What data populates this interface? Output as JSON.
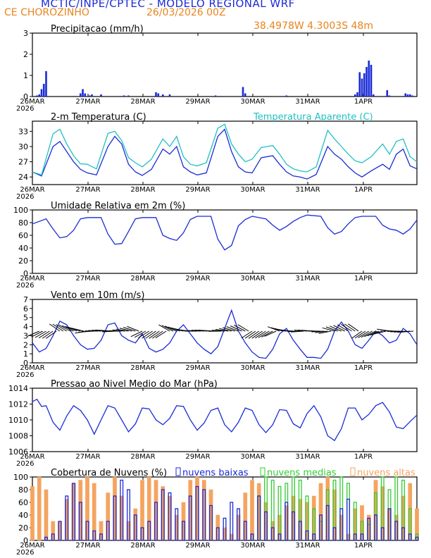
{
  "header": {
    "title": "MCTIC/INPE/CPTEC - MODELO REGIONAL WRF",
    "location": "CE CHOROZINHO",
    "datetime": "26/03/2026 00Z",
    "coordinates": "38.4978W 4.3003S 48m"
  },
  "colors": {
    "blue": "#1a2bd6",
    "orange": "#f4a460",
    "green": "#33cc33",
    "cyan": "#20c0c0",
    "header_orange": "#e8841c"
  },
  "x_axis": {
    "ticks": [
      "26MAR",
      "27MAR",
      "28MAR",
      "29MAR",
      "30MAR",
      "31MAR",
      "1APR"
    ],
    "year": "2026",
    "hours_total": 168
  },
  "chart_data": [
    {
      "type": "bar",
      "title": "Precipitacao (mm/h)",
      "ylim": [
        0,
        3
      ],
      "yticks": [
        "0",
        "1",
        "2",
        "3"
      ],
      "series": [
        {
          "name": "Precipitacao",
          "x_hours": [
            2,
            3,
            4,
            5,
            6,
            21,
            22,
            23,
            25,
            26,
            30,
            40,
            42,
            54,
            55,
            57,
            60,
            80,
            92,
            93,
            111,
            141,
            142,
            143,
            144,
            145,
            146,
            147,
            148,
            149,
            155,
            156,
            163,
            164,
            165,
            166
          ],
          "values": [
            0.05,
            0.1,
            0.35,
            0.6,
            1.2,
            0.15,
            0.35,
            0.15,
            0.05,
            0.1,
            0.1,
            0.05,
            0.05,
            0.2,
            0.15,
            0.1,
            0.1,
            0.05,
            0.45,
            0.15,
            0.05,
            0.1,
            0.2,
            1.15,
            0.85,
            1.1,
            1.4,
            1.7,
            1.5,
            0.1,
            0.3,
            0.05,
            0.15,
            0.1,
            0.1,
            0.05
          ]
        }
      ]
    },
    {
      "type": "line",
      "title": "2-m Temperatura (C)",
      "legend": "Temperatura Aparente (C)",
      "ylim": [
        22.5,
        35
      ],
      "yticks": [
        "24",
        "27",
        "30",
        "33"
      ],
      "series": [
        {
          "name": "2-m Temperatura",
          "x_hours": [
            0,
            4,
            9,
            12,
            15,
            18,
            21,
            24,
            28,
            33,
            36,
            39,
            42,
            45,
            48,
            52,
            57,
            60,
            63,
            66,
            69,
            72,
            76,
            81,
            84,
            87,
            90,
            93,
            96,
            100,
            105,
            108,
            111,
            114,
            117,
            120,
            124,
            129,
            132,
            135,
            138,
            141,
            144,
            148,
            153,
            156,
            159,
            162,
            165,
            168
          ],
          "values": [
            25,
            24.2,
            30,
            31,
            29,
            27,
            25.5,
            24.8,
            24.4,
            30,
            32,
            30.5,
            26.5,
            25,
            24.3,
            25.5,
            29.5,
            28.5,
            30,
            26,
            25,
            24.4,
            24.8,
            32,
            33.4,
            29,
            26,
            25,
            24.8,
            27.8,
            28.2,
            26.5,
            25,
            24.2,
            24,
            23.6,
            24.5,
            30,
            28.5,
            27.5,
            26,
            24.8,
            24,
            25.2,
            26.5,
            25.5,
            28.5,
            29.5,
            26.2,
            25.6
          ]
        },
        {
          "name": "Temperatura Aparente (C)",
          "x_hours": [
            0,
            4,
            9,
            12,
            15,
            18,
            21,
            24,
            28,
            33,
            36,
            39,
            42,
            45,
            48,
            52,
            57,
            60,
            63,
            66,
            69,
            72,
            76,
            81,
            84,
            87,
            90,
            93,
            96,
            100,
            105,
            108,
            111,
            114,
            117,
            120,
            124,
            129,
            132,
            135,
            138,
            141,
            144,
            148,
            153,
            156,
            159,
            162,
            165,
            168
          ],
          "values": [
            25,
            24.4,
            32.5,
            33.4,
            30.5,
            28.2,
            26.6,
            26.5,
            25.6,
            32.6,
            33,
            31.2,
            27.8,
            26.8,
            26,
            27.5,
            31.5,
            30,
            32,
            28,
            26.5,
            26.2,
            26.8,
            33.6,
            34.4,
            30.5,
            28.5,
            27,
            27.5,
            29.8,
            30.2,
            28.5,
            26.5,
            25.6,
            25.2,
            25,
            26,
            33.2,
            31.5,
            30,
            28.5,
            27.2,
            26.8,
            28,
            30.5,
            28.5,
            31,
            31.5,
            28,
            27
          ]
        }
      ]
    },
    {
      "type": "line",
      "title": "Umidade Relativa em 2m (%)",
      "ylim": [
        0,
        100
      ],
      "yticks": [
        "0",
        "20",
        "40",
        "60",
        "80",
        "100"
      ],
      "series": [
        {
          "name": "Umidade Relativa",
          "x_hours": [
            0,
            6,
            9,
            12,
            15,
            18,
            21,
            24,
            30,
            33,
            36,
            39,
            42,
            45,
            48,
            54,
            57,
            60,
            63,
            66,
            69,
            72,
            78,
            81,
            84,
            87,
            90,
            93,
            96,
            102,
            105,
            108,
            111,
            114,
            117,
            120,
            126,
            129,
            132,
            135,
            138,
            141,
            144,
            150,
            153,
            156,
            159,
            162,
            165,
            168
          ],
          "values": [
            78,
            86,
            70,
            56,
            58,
            68,
            86,
            88,
            88,
            62,
            46,
            47,
            66,
            86,
            88,
            88,
            60,
            55,
            52,
            64,
            85,
            90,
            90,
            54,
            37,
            44,
            75,
            85,
            90,
            86,
            76,
            68,
            74,
            82,
            88,
            92,
            90,
            72,
            62,
            66,
            78,
            88,
            90,
            90,
            76,
            70,
            68,
            62,
            70,
            84
          ]
        }
      ]
    },
    {
      "type": "line",
      "title": "Vento em 10m (m/s)",
      "ylim": [
        0,
        7
      ],
      "yticks": [
        "0",
        "1",
        "2",
        "3",
        "4",
        "5",
        "6",
        "7"
      ],
      "series": [
        {
          "name": "Vento",
          "x_hours": [
            0,
            3,
            6,
            9,
            12,
            15,
            18,
            21,
            24,
            27,
            30,
            33,
            36,
            39,
            42,
            45,
            48,
            51,
            54,
            57,
            60,
            63,
            66,
            69,
            72,
            75,
            78,
            81,
            84,
            87,
            90,
            93,
            96,
            99,
            102,
            105,
            108,
            111,
            114,
            117,
            120,
            123,
            126,
            129,
            132,
            135,
            138,
            141,
            144,
            147,
            150,
            153,
            156,
            159,
            162,
            165,
            168
          ],
          "values": [
            2.2,
            1.2,
            1.6,
            3,
            4.6,
            4.2,
            3,
            2,
            1.5,
            1.6,
            2.5,
            4.2,
            4.4,
            3,
            2.5,
            2.2,
            3.2,
            1.6,
            1.2,
            1.5,
            2.2,
            3.5,
            4.2,
            3.2,
            2.2,
            1.5,
            1,
            1.8,
            3.8,
            5.8,
            3.5,
            2.2,
            1.2,
            0.6,
            0.5,
            1.5,
            3.2,
            3.8,
            2.5,
            1.5,
            0.6,
            0.6,
            0.5,
            1.5,
            3.5,
            4.5,
            3.5,
            2,
            1.6,
            2.5,
            3.5,
            3,
            2.2,
            2.5,
            3.8,
            3.2,
            2
          ]
        }
      ]
    },
    {
      "type": "line",
      "title": "Pressao ao Nivel Medio do Mar (hPa)",
      "ylim": [
        1006,
        1014
      ],
      "yticks": [
        "1006",
        "1008",
        "1010",
        "1012",
        "1014"
      ],
      "series": [
        {
          "name": "Pressao",
          "x_hours": [
            0,
            2,
            4,
            6,
            9,
            12,
            15,
            18,
            21,
            24,
            27,
            30,
            33,
            36,
            39,
            42,
            45,
            48,
            51,
            54,
            57,
            60,
            63,
            66,
            69,
            72,
            75,
            78,
            81,
            84,
            87,
            90,
            93,
            96,
            99,
            102,
            105,
            108,
            111,
            114,
            117,
            120,
            123,
            126,
            129,
            132,
            135,
            138,
            141,
            144,
            147,
            150,
            153,
            156,
            159,
            162,
            165,
            168
          ],
          "values": [
            1012.3,
            1012.6,
            1011.7,
            1011.8,
            1009.7,
            1008.7,
            1010.5,
            1011.8,
            1011.2,
            1010,
            1008.2,
            1010,
            1011.8,
            1011.5,
            1010,
            1008.5,
            1009.5,
            1011.5,
            1011.4,
            1010,
            1009.4,
            1010.2,
            1011.8,
            1011.7,
            1010,
            1008.7,
            1009.6,
            1011.2,
            1011.5,
            1009.4,
            1008.5,
            1009.7,
            1011.5,
            1011.2,
            1009.4,
            1008.4,
            1009.4,
            1011.3,
            1011.2,
            1009.5,
            1009,
            1010.8,
            1011.8,
            1010.4,
            1008,
            1007.4,
            1008.9,
            1011.5,
            1011.5,
            1010,
            1010.7,
            1011.8,
            1012.2,
            1011,
            1009.1,
            1008.9,
            1009.8,
            1010.6
          ]
        }
      ]
    },
    {
      "type": "bar",
      "title": "Cobertura de Nuvens (%)",
      "ylim": [
        0,
        100
      ],
      "yticks": [
        "0",
        "20",
        "40",
        "60",
        "80",
        "100"
      ],
      "legend": [
        "nuvens baixas",
        "nuvens medias",
        "nuvens altas"
      ],
      "series": [
        {
          "name": "nuvens baixas",
          "x_hours": [
            6,
            9,
            12,
            15,
            18,
            21,
            24,
            27,
            30,
            33,
            36,
            39,
            42,
            45,
            48,
            51,
            54,
            57,
            60,
            63,
            66,
            69,
            72,
            75,
            78,
            81,
            84,
            87,
            90,
            93,
            96,
            99,
            102,
            105,
            108,
            111,
            114,
            117,
            120,
            123,
            126,
            129,
            132,
            135,
            138,
            141,
            144,
            147,
            150,
            153,
            156,
            159,
            162,
            165,
            168
          ],
          "values": [
            5,
            10,
            30,
            70,
            90,
            60,
            30,
            15,
            10,
            30,
            70,
            95,
            80,
            40,
            20,
            30,
            60,
            80,
            75,
            50,
            30,
            70,
            85,
            80,
            55,
            20,
            35,
            60,
            50,
            30,
            10,
            70,
            45,
            20,
            10,
            60,
            45,
            30,
            15,
            10,
            40,
            55,
            20,
            50,
            65,
            10,
            10,
            35,
            40,
            20,
            50,
            30,
            20,
            10,
            5
          ]
        },
        {
          "name": "nuvens medias",
          "x_hours": [
            96,
            99,
            102,
            105,
            108,
            111,
            114,
            117,
            120,
            123,
            126,
            129,
            132,
            135,
            138,
            141,
            144,
            147,
            150,
            153,
            156,
            159,
            162,
            165,
            168
          ],
          "values": [
            10,
            70,
            100,
            95,
            85,
            90,
            100,
            95,
            70,
            50,
            30,
            80,
            95,
            100,
            90,
            60,
            30,
            25,
            75,
            100,
            80,
            100,
            95,
            50,
            10
          ]
        },
        {
          "name": "nuvens altas",
          "x_hours": [
            0,
            3,
            6,
            9,
            12,
            15,
            18,
            21,
            24,
            27,
            30,
            33,
            36,
            39,
            42,
            45,
            48,
            51,
            54,
            57,
            60,
            63,
            66,
            69,
            72,
            75,
            78,
            81,
            84,
            87,
            90,
            93,
            96,
            99,
            102,
            105,
            108,
            111,
            114,
            117,
            120,
            123,
            126,
            129,
            132,
            135,
            138,
            141,
            144,
            147,
            150,
            153,
            156,
            159,
            162,
            165,
            168
          ],
          "values": [
            85,
            100,
            80,
            30,
            30,
            65,
            90,
            95,
            100,
            90,
            30,
            75,
            100,
            70,
            30,
            50,
            95,
            100,
            95,
            85,
            70,
            40,
            60,
            95,
            100,
            95,
            80,
            40,
            20,
            10,
            40,
            75,
            95,
            90,
            60,
            30,
            40,
            55,
            70,
            65,
            60,
            70,
            90,
            100,
            80,
            40,
            10,
            50,
            55,
            40,
            95,
            85,
            50,
            40,
            70,
            90,
            50
          ]
        }
      ]
    }
  ]
}
